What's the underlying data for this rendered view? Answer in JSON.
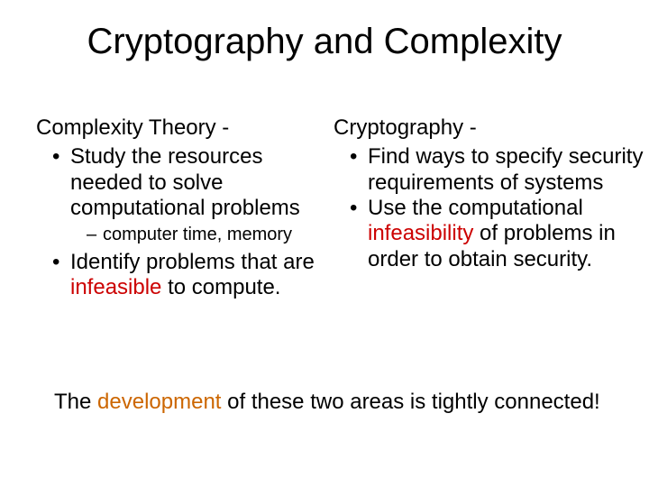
{
  "title": "Cryptography and Complexity",
  "left": {
    "heading": "Complexity Theory -",
    "b1_a": "Study the resources needed to solve computational problems",
    "sub1": "computer time, memory",
    "b2_pre": "Identify  problems that are ",
    "b2_word": "infeasible",
    "b2_post": " to compute."
  },
  "right": {
    "heading": "Cryptography -",
    "b1": "Find ways to specify security requirements of systems",
    "b2_pre": " Use the computational ",
    "b2_word": "infeasibility",
    "b2_post": " of problems in order to obtain  security."
  },
  "footer": {
    "pre": "The ",
    "word": "development",
    "post": " of these two areas is tightly connected!"
  },
  "colors": {
    "red": "#cc0000",
    "orange": "#cc6600",
    "text": "#000000",
    "bg": "#ffffff"
  },
  "fonts": {
    "title_size": 40,
    "body_size": 24,
    "sub_size": 20
  }
}
